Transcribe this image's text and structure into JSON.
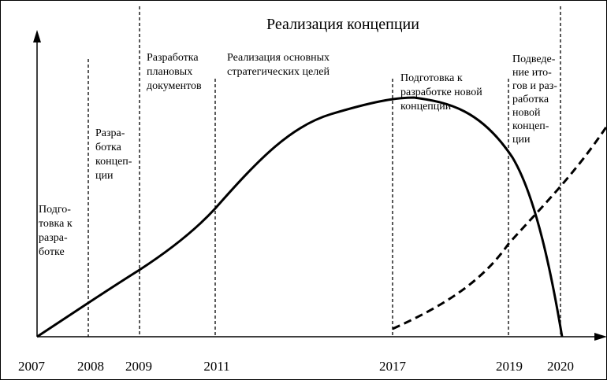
{
  "title": "Реализация концепции",
  "years": [
    "2007",
    "2008",
    "2009",
    "2011",
    "2017",
    "2019",
    "2020"
  ],
  "phases": [
    {
      "lines": [
        "Подго-",
        "товка к",
        "разра-",
        "ботке"
      ]
    },
    {
      "lines": [
        "Разра-",
        "ботка",
        "концеп-",
        "ции"
      ]
    },
    {
      "lines": [
        "Разработка",
        "плановых",
        "документов"
      ]
    },
    {
      "lines": [
        "Реализация основных",
        "стратегических целей"
      ]
    },
    {
      "lines": [
        "Подготовка к",
        "разработке новой",
        "концепции"
      ]
    },
    {
      "lines": [
        "Подведе-",
        "ние ито-",
        "гов и раз-",
        "работка",
        "новой",
        "концеп-",
        "ции"
      ]
    }
  ]
}
